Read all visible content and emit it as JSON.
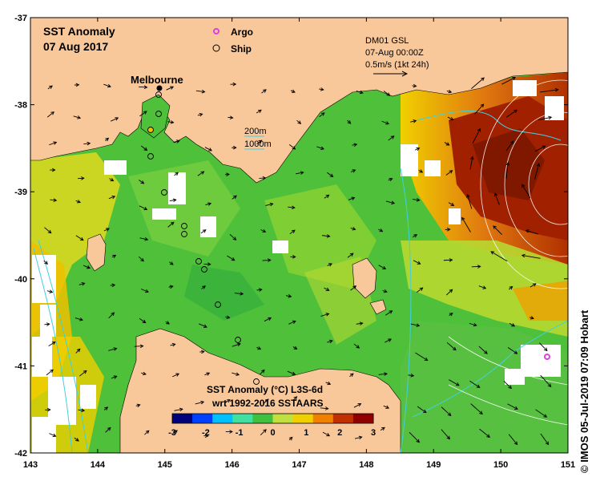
{
  "title": {
    "line1": "SST Anomaly",
    "line2": "07 Aug 2017"
  },
  "legend": {
    "argo_label": "Argo",
    "ship_label": "Ship",
    "argo_color": "#e040e0"
  },
  "current_info": {
    "line1": "DM01 GSL",
    "line2": "07-Aug 00:00Z",
    "line3": "0.5m/s (1kt 24h)"
  },
  "depth_legend": {
    "shallow": "200m",
    "deep": "1000m",
    "color": "#40d0e0"
  },
  "place_label": "Melbourne",
  "colorbar": {
    "title1": "SST Anomaly (°C) L3S-6d",
    "title2": "wrt 1992-2016 SSTAARS",
    "ticks": [
      "-3",
      "-2",
      "-1",
      "0",
      "1",
      "2",
      "3"
    ],
    "min": -3,
    "max": 3,
    "colors": [
      "#00007a",
      "#0040ff",
      "#00c0ff",
      "#40e0a0",
      "#40c040",
      "#c0e040",
      "#f0d000",
      "#f08000",
      "#c03000",
      "#900000"
    ]
  },
  "axes": {
    "x_ticks": [
      "143",
      "144",
      "145",
      "146",
      "147",
      "148",
      "149",
      "150",
      "151"
    ],
    "y_ticks": [
      "-37",
      "-38",
      "-39",
      "-40",
      "-41",
      "-42"
    ],
    "lon_range": [
      143,
      151
    ],
    "lat_range": [
      -42,
      -37
    ]
  },
  "credit": "© IMOS 05-Jul-2019 07:09 Hobart",
  "colors": {
    "land": "#f9c89a",
    "ocean_base": "#4ec03a",
    "warm": "#e07810",
    "hot": "#a02000",
    "nodata": "#ffffff"
  }
}
